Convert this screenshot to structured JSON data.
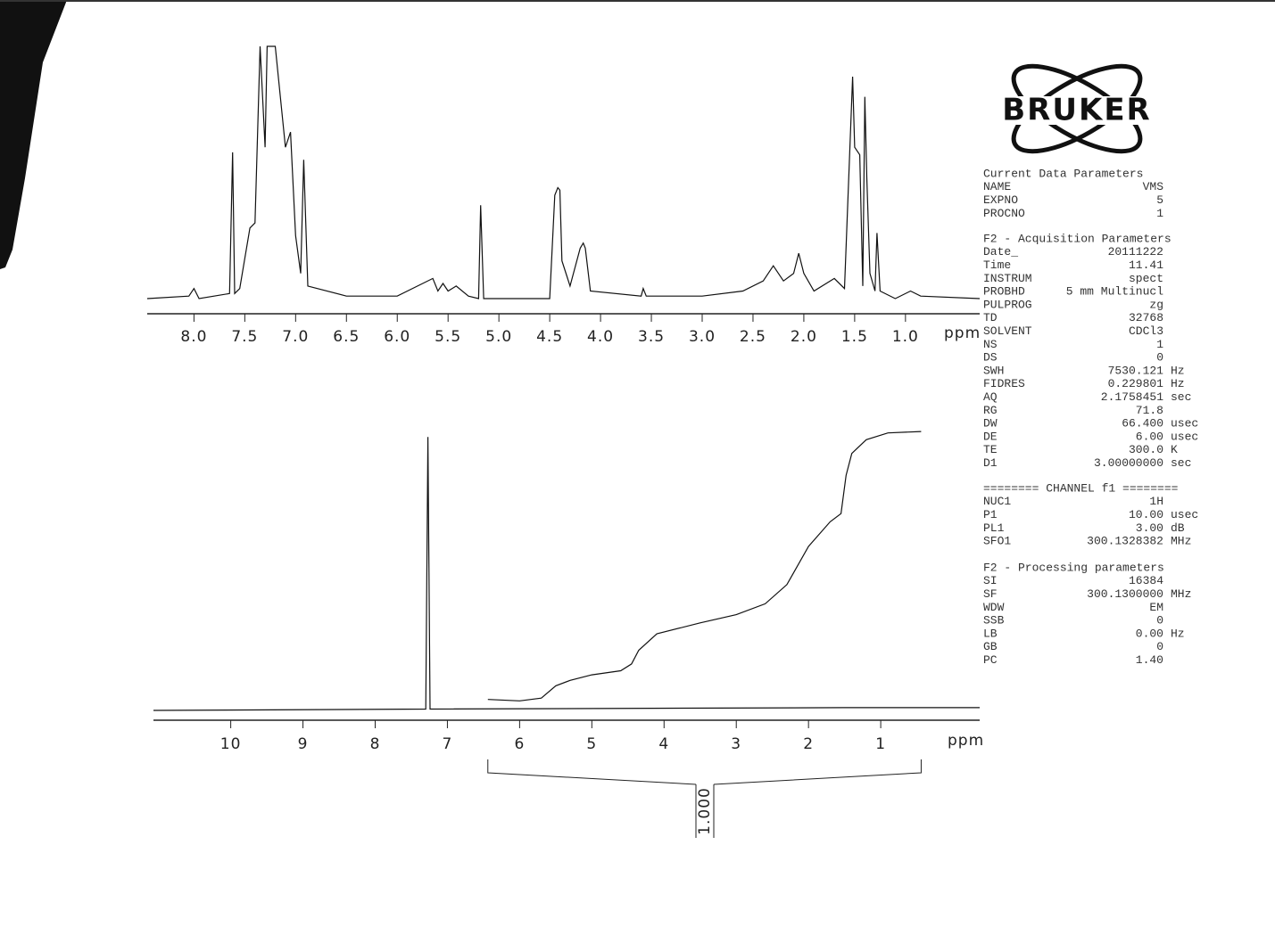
{
  "brand": "BRUKER",
  "parameters": [
    {
      "title": "Current Data Parameters",
      "rows": [
        [
          "NAME",
          "VMS",
          ""
        ],
        [
          "EXPNO",
          "5",
          ""
        ],
        [
          "PROCNO",
          "1",
          ""
        ]
      ]
    },
    {
      "title": "F2 - Acquisition Parameters",
      "rows": [
        [
          "Date_",
          "20111222",
          ""
        ],
        [
          "Time",
          "11.41",
          ""
        ],
        [
          "INSTRUM",
          "spect",
          ""
        ],
        [
          "PROBHD",
          "5 mm Multinucl",
          ""
        ],
        [
          "PULPROG",
          "zg",
          ""
        ],
        [
          "TD",
          "32768",
          ""
        ],
        [
          "SOLVENT",
          "CDCl3",
          ""
        ],
        [
          "NS",
          "1",
          ""
        ],
        [
          "DS",
          "0",
          ""
        ],
        [
          "SWH",
          "7530.121",
          "Hz"
        ],
        [
          "FIDRES",
          "0.229801",
          "Hz"
        ],
        [
          "AQ",
          "2.1758451",
          "sec"
        ],
        [
          "RG",
          "71.8",
          ""
        ],
        [
          "DW",
          "66.400",
          "usec"
        ],
        [
          "DE",
          "6.00",
          "usec"
        ],
        [
          "TE",
          "300.0",
          "K"
        ],
        [
          "D1",
          "3.00000000",
          "sec"
        ]
      ]
    },
    {
      "title": "======== CHANNEL f1 ========",
      "rows": [
        [
          "NUC1",
          "1H",
          ""
        ],
        [
          "P1",
          "10.00",
          "usec"
        ],
        [
          "PL1",
          "3.00",
          "dB"
        ],
        [
          "SFO1",
          "300.1328382",
          "MHz"
        ]
      ]
    },
    {
      "title": "F2 - Processing parameters",
      "rows": [
        [
          "SI",
          "16384",
          ""
        ],
        [
          "SF",
          "300.1300000",
          "MHz"
        ],
        [
          "WDW",
          "EM",
          ""
        ],
        [
          "SSB",
          "0",
          ""
        ],
        [
          "LB",
          "0.00",
          "Hz"
        ],
        [
          "GB",
          "0",
          ""
        ],
        [
          "PC",
          "1.40",
          ""
        ]
      ]
    }
  ],
  "chart_data": [
    {
      "type": "line",
      "xlabel": "ppm",
      "xlim": [
        8.46,
        0.27
      ],
      "ylim": [
        0,
        100
      ],
      "xticks": [
        {
          "value": 8,
          "label": "8.0"
        },
        7.5,
        {
          "value": 7,
          "label": "7.0"
        },
        6.5,
        {
          "value": 6,
          "label": "6.0"
        },
        5.5,
        {
          "value": 5,
          "label": "5.0"
        },
        4.5,
        {
          "value": 4,
          "label": "4.0"
        },
        3.5,
        {
          "value": 3,
          "label": "3.0"
        },
        2.5,
        {
          "value": 2,
          "label": "2.0"
        },
        1.5,
        {
          "value": 1,
          "label": "1.0"
        }
      ],
      "series": [
        {
          "color": "#111",
          "x": [
            8.46,
            8.05,
            8.0,
            7.95,
            7.65,
            7.62,
            7.6,
            7.55,
            7.45,
            7.4,
            7.35,
            7.3,
            7.28,
            7.25,
            7.2,
            7.15,
            7.1,
            7.05,
            7.0,
            6.95,
            6.92,
            6.88,
            6.5,
            6.0,
            5.65,
            5.6,
            5.55,
            5.5,
            5.42,
            5.3,
            5.2,
            5.18,
            5.15,
            4.5,
            4.45,
            4.42,
            4.4,
            4.38,
            4.3,
            4.2,
            4.17,
            4.15,
            4.1,
            3.6,
            3.58,
            3.55,
            3.0,
            2.6,
            2.4,
            2.3,
            2.2,
            2.1,
            2.05,
            2.0,
            1.9,
            1.7,
            1.6,
            1.52,
            1.5,
            1.45,
            1.42,
            1.4,
            1.38,
            1.35,
            1.3,
            1.28,
            1.25,
            1.1,
            0.95,
            0.85,
            0.27
          ],
          "values": [
            0,
            1,
            4,
            0,
            2,
            58,
            2,
            4,
            28,
            30,
            100,
            60,
            100,
            100,
            100,
            80,
            60,
            66,
            25,
            10,
            55,
            5,
            1,
            1,
            8,
            3,
            6,
            3,
            5,
            1,
            0,
            37,
            0,
            0,
            41,
            44,
            43,
            15,
            5,
            20,
            22,
            20,
            3,
            1,
            4,
            1,
            1,
            3,
            7,
            13,
            7,
            10,
            18,
            10,
            3,
            8,
            4,
            88,
            60,
            57,
            5,
            80,
            48,
            10,
            3,
            26,
            3,
            0,
            3,
            1,
            0
          ]
        }
      ]
    },
    {
      "type": "line",
      "xlabel": "ppm",
      "xlim": [
        11.07,
        -0.37
      ],
      "ylim": [
        0,
        104
      ],
      "xticks": [
        10,
        9,
        8,
        7,
        6,
        5,
        4,
        3,
        2,
        1
      ],
      "series": [
        {
          "color": "#111",
          "x": [
            11.07,
            7.3,
            7.27,
            7.24,
            1.5,
            -0.37
          ],
          "values": [
            0,
            0.5,
            100,
            0.5,
            1,
            1
          ]
        },
        {
          "color": "#111",
          "x": [
            6.44,
            6.0,
            5.7,
            5.5,
            5.3,
            5.0,
            4.6,
            4.45,
            4.35,
            4.1,
            3.5,
            3.0,
            2.6,
            2.3,
            2.0,
            1.7,
            1.55,
            1.48,
            1.4,
            1.2,
            0.9,
            0.44
          ],
          "values": [
            4,
            3.5,
            4.5,
            9,
            11,
            13,
            14.5,
            17,
            22,
            28,
            32,
            35,
            39,
            46,
            60,
            69,
            72,
            86,
            94,
            99,
            101.5,
            102
          ]
        }
      ],
      "integral": {
        "range": [
          6.44,
          0.44
        ],
        "value": 1,
        "value_label": "1.000"
      }
    }
  ]
}
